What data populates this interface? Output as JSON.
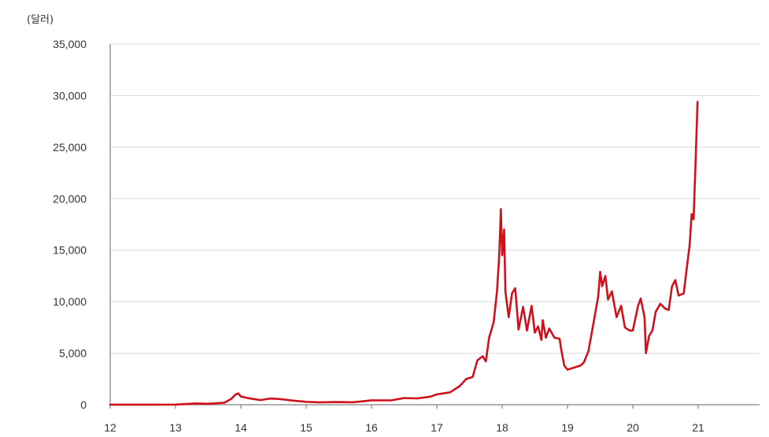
{
  "chart_data": {
    "type": "line",
    "title": "",
    "unit_label": "(달러)",
    "xlabel": "",
    "ylabel": "",
    "x_ticks": [
      "12",
      "13",
      "14",
      "15",
      "16",
      "17",
      "18",
      "19",
      "20",
      "21"
    ],
    "y_ticks": [
      "0",
      "5,000",
      "10,000",
      "15,000",
      "20,000",
      "25,000",
      "30,000",
      "35,000"
    ],
    "xlim": [
      2012,
      2022
    ],
    "ylim": [
      0,
      35000
    ],
    "grid": true,
    "legend": "none",
    "colors": {
      "series": "#d0111b",
      "grid": "#d9d9d9",
      "axis": "#808080"
    },
    "series": [
      {
        "name": "",
        "points": [
          [
            2012.0,
            5
          ],
          [
            2012.5,
            7
          ],
          [
            2013.0,
            14
          ],
          [
            2013.3,
            120
          ],
          [
            2013.5,
            95
          ],
          [
            2013.75,
            200
          ],
          [
            2013.85,
            550
          ],
          [
            2013.92,
            1000
          ],
          [
            2013.96,
            1100
          ],
          [
            2014.0,
            800
          ],
          [
            2014.1,
            650
          ],
          [
            2014.2,
            550
          ],
          [
            2014.3,
            450
          ],
          [
            2014.45,
            600
          ],
          [
            2014.6,
            550
          ],
          [
            2014.8,
            400
          ],
          [
            2015.0,
            280
          ],
          [
            2015.2,
            240
          ],
          [
            2015.5,
            260
          ],
          [
            2015.7,
            240
          ],
          [
            2015.85,
            320
          ],
          [
            2016.0,
            430
          ],
          [
            2016.3,
            420
          ],
          [
            2016.5,
            650
          ],
          [
            2016.7,
            610
          ],
          [
            2016.9,
            780
          ],
          [
            2017.0,
            1000
          ],
          [
            2017.2,
            1200
          ],
          [
            2017.35,
            1800
          ],
          [
            2017.45,
            2500
          ],
          [
            2017.55,
            2700
          ],
          [
            2017.62,
            4300
          ],
          [
            2017.7,
            4700
          ],
          [
            2017.75,
            4200
          ],
          [
            2017.8,
            6500
          ],
          [
            2017.87,
            8000
          ],
          [
            2017.92,
            11000
          ],
          [
            2017.95,
            14000
          ],
          [
            2017.97,
            17000
          ],
          [
            2017.98,
            19000
          ],
          [
            2018.0,
            14500
          ],
          [
            2018.03,
            17000
          ],
          [
            2018.05,
            11000
          ],
          [
            2018.1,
            8500
          ],
          [
            2018.15,
            10800
          ],
          [
            2018.2,
            11300
          ],
          [
            2018.25,
            7300
          ],
          [
            2018.32,
            9500
          ],
          [
            2018.38,
            7200
          ],
          [
            2018.45,
            9600
          ],
          [
            2018.5,
            7000
          ],
          [
            2018.55,
            7600
          ],
          [
            2018.6,
            6300
          ],
          [
            2018.62,
            8200
          ],
          [
            2018.67,
            6500
          ],
          [
            2018.72,
            7400
          ],
          [
            2018.8,
            6500
          ],
          [
            2018.88,
            6400
          ],
          [
            2018.9,
            5500
          ],
          [
            2018.95,
            3800
          ],
          [
            2019.0,
            3400
          ],
          [
            2019.1,
            3600
          ],
          [
            2019.2,
            3800
          ],
          [
            2019.25,
            4100
          ],
          [
            2019.32,
            5200
          ],
          [
            2019.4,
            8000
          ],
          [
            2019.47,
            10500
          ],
          [
            2019.5,
            12900
          ],
          [
            2019.53,
            11500
          ],
          [
            2019.58,
            12500
          ],
          [
            2019.62,
            10200
          ],
          [
            2019.68,
            11000
          ],
          [
            2019.75,
            8500
          ],
          [
            2019.82,
            9600
          ],
          [
            2019.88,
            7500
          ],
          [
            2019.95,
            7200
          ],
          [
            2020.0,
            7200
          ],
          [
            2020.08,
            9600
          ],
          [
            2020.12,
            10300
          ],
          [
            2020.18,
            8500
          ],
          [
            2020.2,
            5000
          ],
          [
            2020.25,
            6700
          ],
          [
            2020.3,
            7200
          ],
          [
            2020.35,
            9000
          ],
          [
            2020.42,
            9800
          ],
          [
            2020.5,
            9300
          ],
          [
            2020.55,
            9200
          ],
          [
            2020.6,
            11500
          ],
          [
            2020.65,
            12100
          ],
          [
            2020.7,
            10600
          ],
          [
            2020.78,
            10800
          ],
          [
            2020.83,
            13500
          ],
          [
            2020.87,
            15500
          ],
          [
            2020.9,
            18500
          ],
          [
            2020.93,
            18000
          ],
          [
            2020.96,
            23500
          ],
          [
            2020.99,
            29400
          ]
        ]
      }
    ]
  }
}
